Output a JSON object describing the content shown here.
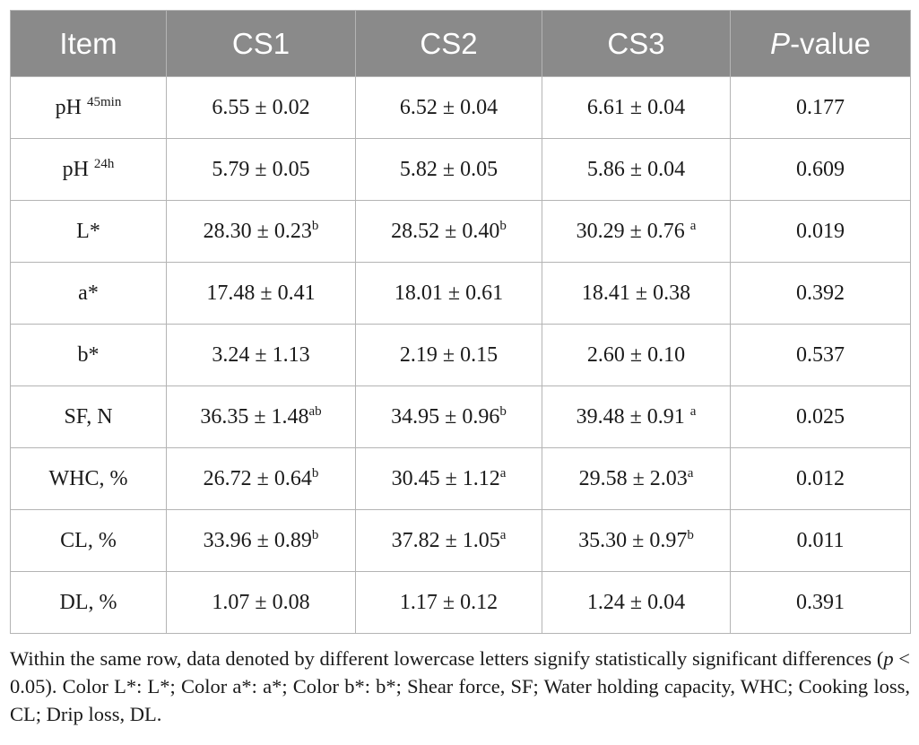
{
  "table": {
    "header": {
      "item": "Item",
      "cs1": "CS1",
      "cs2": "CS2",
      "cs3": "CS3",
      "p_italic": "P",
      "p_rest": "-value"
    },
    "rows": [
      {
        "item": "pH",
        "item_sup": "45min",
        "cs1": {
          "v": "6.55 ± 0.02",
          "s": ""
        },
        "cs2": {
          "v": "6.52 ± 0.04",
          "s": ""
        },
        "cs3": {
          "v": "6.61 ± 0.04",
          "s": ""
        },
        "p": "0.177"
      },
      {
        "item": "pH",
        "item_sup": "24h",
        "cs1": {
          "v": "5.79 ± 0.05",
          "s": ""
        },
        "cs2": {
          "v": "5.82 ± 0.05",
          "s": ""
        },
        "cs3": {
          "v": "5.86 ± 0.04",
          "s": ""
        },
        "p": "0.609"
      },
      {
        "item": "L*",
        "item_sup": "",
        "cs1": {
          "v": "28.30 ± 0.23",
          "s": "b"
        },
        "cs2": {
          "v": "28.52 ± 0.40",
          "s": "b"
        },
        "cs3": {
          "v": "30.29 ± 0.76",
          "s": "a"
        },
        "p": "0.019"
      },
      {
        "item": "a*",
        "item_sup": "",
        "cs1": {
          "v": "17.48 ± 0.41",
          "s": ""
        },
        "cs2": {
          "v": "18.01 ± 0.61",
          "s": ""
        },
        "cs3": {
          "v": "18.41 ± 0.38",
          "s": ""
        },
        "p": "0.392"
      },
      {
        "item": "b*",
        "item_sup": "",
        "cs1": {
          "v": "3.24 ± 1.13",
          "s": ""
        },
        "cs2": {
          "v": "2.19 ± 0.15",
          "s": ""
        },
        "cs3": {
          "v": "2.60 ± 0.10",
          "s": ""
        },
        "p": "0.537"
      },
      {
        "item": "SF, N",
        "item_sup": "",
        "cs1": {
          "v": "36.35 ± 1.48",
          "s": "ab"
        },
        "cs2": {
          "v": "34.95 ± 0.96",
          "s": "b"
        },
        "cs3": {
          "v": "39.48 ± 0.91",
          "s": "a"
        },
        "p": "0.025"
      },
      {
        "item": "WHC, %",
        "item_sup": "",
        "cs1": {
          "v": "26.72 ± 0.64",
          "s": "b"
        },
        "cs2": {
          "v": "30.45 ± 1.12",
          "s": "a"
        },
        "cs3": {
          "v": "29.58 ± 2.03",
          "s": "a"
        },
        "p": "0.012"
      },
      {
        "item": "CL, %",
        "item_sup": "",
        "cs1": {
          "v": "33.96 ± 0.89",
          "s": "b"
        },
        "cs2": {
          "v": "37.82 ± 1.05",
          "s": "a"
        },
        "cs3": {
          "v": "35.30 ± 0.97",
          "s": "b"
        },
        "p": "0.011"
      },
      {
        "item": "DL, %",
        "item_sup": "",
        "cs1": {
          "v": "1.07 ± 0.08",
          "s": ""
        },
        "cs2": {
          "v": "1.17 ± 0.12",
          "s": ""
        },
        "cs3": {
          "v": "1.24 ± 0.04",
          "s": ""
        },
        "p": "0.391"
      }
    ]
  },
  "footnote": {
    "part1": "Within the same row, data denoted by different lowercase letters signify statistically significant differences (",
    "p_italic": "p",
    "part2": " < 0.05). Color L*: L*; Color a*: a*; Color b*: b*; Shear force, SF; Water holding capacity, WHC; Cooking loss, CL; Drip loss, DL."
  }
}
